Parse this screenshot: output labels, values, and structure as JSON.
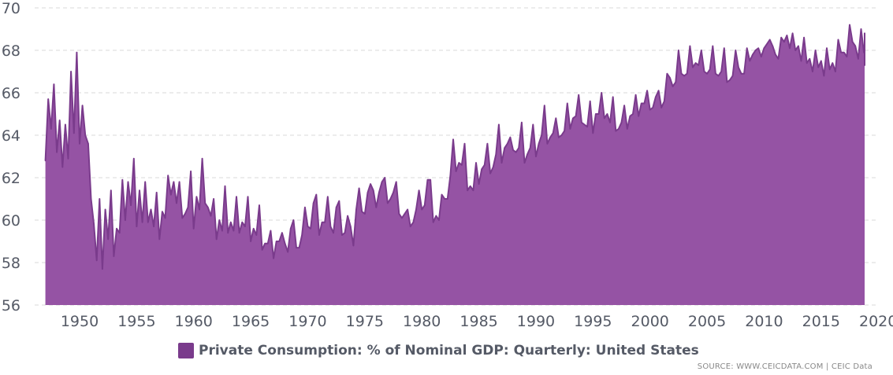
{
  "chart_data": {
    "type": "area",
    "title": "",
    "xlabel": "",
    "ylabel": "",
    "x_range": [
      1947,
      2019.5
    ],
    "ylim": [
      56,
      70
    ],
    "y_ticks": [
      "56",
      "58",
      "60",
      "62",
      "64",
      "66",
      "68",
      "70"
    ],
    "x_ticks": [
      "1950",
      "1955",
      "1960",
      "1965",
      "1970",
      "1975",
      "1980",
      "1985",
      "1990",
      "1995",
      "2000",
      "2005",
      "2010",
      "2015",
      "2020"
    ],
    "grid": "horizontal dashed",
    "legend_position": "bottom",
    "series": [
      {
        "name": "Private Consumption: % of Nominal GDP: Quarterly: United States",
        "color": "#9553a4",
        "line_color": "#7a3b8c",
        "points": [
          [
            1947.0,
            62.8
          ],
          [
            1947.25,
            65.7
          ],
          [
            1947.5,
            64.3
          ],
          [
            1947.75,
            66.4
          ],
          [
            1948.0,
            63.2
          ],
          [
            1948.25,
            64.7
          ],
          [
            1948.5,
            62.5
          ],
          [
            1948.75,
            64.5
          ],
          [
            1949.0,
            62.9
          ],
          [
            1949.25,
            67.0
          ],
          [
            1949.5,
            64.1
          ],
          [
            1949.75,
            67.9
          ],
          [
            1950.0,
            63.6
          ],
          [
            1950.25,
            65.4
          ],
          [
            1950.5,
            64.0
          ],
          [
            1950.75,
            63.6
          ],
          [
            1951.0,
            61.0
          ],
          [
            1951.25,
            59.8
          ],
          [
            1951.5,
            58.1
          ],
          [
            1951.75,
            61.0
          ],
          [
            1952.0,
            57.7
          ],
          [
            1952.25,
            60.5
          ],
          [
            1952.5,
            59.1
          ],
          [
            1952.75,
            61.4
          ],
          [
            1953.0,
            58.3
          ],
          [
            1953.25,
            59.6
          ],
          [
            1953.5,
            59.4
          ],
          [
            1953.75,
            61.9
          ],
          [
            1954.0,
            60.0
          ],
          [
            1954.25,
            61.8
          ],
          [
            1954.5,
            60.7
          ],
          [
            1954.75,
            62.9
          ],
          [
            1955.0,
            59.7
          ],
          [
            1955.25,
            61.4
          ],
          [
            1955.5,
            59.9
          ],
          [
            1955.75,
            61.8
          ],
          [
            1956.0,
            59.9
          ],
          [
            1956.25,
            60.5
          ],
          [
            1956.5,
            59.7
          ],
          [
            1956.75,
            61.3
          ],
          [
            1957.0,
            59.1
          ],
          [
            1957.25,
            60.4
          ],
          [
            1957.5,
            60.1
          ],
          [
            1957.75,
            62.1
          ],
          [
            1958.0,
            61.2
          ],
          [
            1958.25,
            61.8
          ],
          [
            1958.5,
            60.8
          ],
          [
            1958.75,
            61.8
          ],
          [
            1959.0,
            60.1
          ],
          [
            1959.25,
            60.3
          ],
          [
            1959.5,
            60.6
          ],
          [
            1959.75,
            62.3
          ],
          [
            1960.0,
            59.6
          ],
          [
            1960.25,
            61.1
          ],
          [
            1960.5,
            60.5
          ],
          [
            1960.75,
            62.9
          ],
          [
            1961.0,
            60.8
          ],
          [
            1961.25,
            60.6
          ],
          [
            1961.5,
            60.2
          ],
          [
            1961.75,
            61.0
          ],
          [
            1962.0,
            59.1
          ],
          [
            1962.25,
            60.0
          ],
          [
            1962.5,
            59.5
          ],
          [
            1962.75,
            61.6
          ],
          [
            1963.0,
            59.4
          ],
          [
            1963.25,
            59.9
          ],
          [
            1963.5,
            59.5
          ],
          [
            1963.75,
            61.1
          ],
          [
            1964.0,
            59.4
          ],
          [
            1964.25,
            59.9
          ],
          [
            1964.5,
            59.7
          ],
          [
            1964.75,
            61.1
          ],
          [
            1965.0,
            59.0
          ],
          [
            1965.25,
            59.6
          ],
          [
            1965.5,
            59.3
          ],
          [
            1965.75,
            60.7
          ],
          [
            1966.0,
            58.6
          ],
          [
            1966.25,
            58.9
          ],
          [
            1966.5,
            58.9
          ],
          [
            1966.75,
            59.5
          ],
          [
            1967.0,
            58.2
          ],
          [
            1967.25,
            59.0
          ],
          [
            1967.5,
            59.0
          ],
          [
            1967.75,
            59.4
          ],
          [
            1968.0,
            58.9
          ],
          [
            1968.25,
            58.5
          ],
          [
            1968.5,
            59.6
          ],
          [
            1968.75,
            60.0
          ],
          [
            1969.0,
            58.7
          ],
          [
            1969.25,
            58.7
          ],
          [
            1969.5,
            59.3
          ],
          [
            1969.75,
            60.6
          ],
          [
            1970.0,
            59.7
          ],
          [
            1970.25,
            59.6
          ],
          [
            1970.5,
            60.8
          ],
          [
            1970.75,
            61.2
          ],
          [
            1971.0,
            59.3
          ],
          [
            1971.25,
            59.9
          ],
          [
            1971.5,
            59.9
          ],
          [
            1971.75,
            61.1
          ],
          [
            1972.0,
            59.7
          ],
          [
            1972.25,
            59.4
          ],
          [
            1972.5,
            60.6
          ],
          [
            1972.75,
            60.9
          ],
          [
            1973.0,
            59.3
          ],
          [
            1973.25,
            59.4
          ],
          [
            1973.5,
            60.2
          ],
          [
            1973.75,
            59.7
          ],
          [
            1974.0,
            58.8
          ],
          [
            1974.25,
            60.5
          ],
          [
            1974.5,
            61.5
          ],
          [
            1974.75,
            60.4
          ],
          [
            1975.0,
            60.3
          ],
          [
            1975.25,
            61.3
          ],
          [
            1975.5,
            61.7
          ],
          [
            1975.75,
            61.4
          ],
          [
            1976.0,
            60.6
          ],
          [
            1976.25,
            61.3
          ],
          [
            1976.5,
            61.8
          ],
          [
            1976.75,
            62.0
          ],
          [
            1977.0,
            60.8
          ],
          [
            1977.25,
            61.0
          ],
          [
            1977.5,
            61.3
          ],
          [
            1977.75,
            61.8
          ],
          [
            1978.0,
            60.3
          ],
          [
            1978.25,
            60.1
          ],
          [
            1978.5,
            60.3
          ],
          [
            1978.75,
            60.5
          ],
          [
            1979.0,
            59.7
          ],
          [
            1979.25,
            59.9
          ],
          [
            1979.5,
            60.5
          ],
          [
            1979.75,
            61.4
          ],
          [
            1980.0,
            60.5
          ],
          [
            1980.25,
            60.7
          ],
          [
            1980.5,
            61.9
          ],
          [
            1980.75,
            61.9
          ],
          [
            1981.0,
            59.9
          ],
          [
            1981.25,
            60.2
          ],
          [
            1981.5,
            60.0
          ],
          [
            1981.75,
            61.2
          ],
          [
            1982.0,
            61.0
          ],
          [
            1982.25,
            61.0
          ],
          [
            1982.5,
            62.1
          ],
          [
            1982.75,
            63.8
          ],
          [
            1983.0,
            62.3
          ],
          [
            1983.25,
            62.7
          ],
          [
            1983.5,
            62.6
          ],
          [
            1983.75,
            63.6
          ],
          [
            1984.0,
            61.4
          ],
          [
            1984.25,
            61.6
          ],
          [
            1984.5,
            61.4
          ],
          [
            1984.75,
            62.7
          ],
          [
            1985.0,
            61.7
          ],
          [
            1985.25,
            62.4
          ],
          [
            1985.5,
            62.6
          ],
          [
            1985.75,
            63.6
          ],
          [
            1986.0,
            62.2
          ],
          [
            1986.25,
            62.5
          ],
          [
            1986.5,
            63.1
          ],
          [
            1986.75,
            64.5
          ],
          [
            1987.0,
            62.7
          ],
          [
            1987.25,
            63.4
          ],
          [
            1987.5,
            63.6
          ],
          [
            1987.75,
            63.9
          ],
          [
            1988.0,
            63.3
          ],
          [
            1988.25,
            63.2
          ],
          [
            1988.5,
            63.4
          ],
          [
            1988.75,
            64.6
          ],
          [
            1989.0,
            62.7
          ],
          [
            1989.25,
            63.1
          ],
          [
            1989.5,
            63.4
          ],
          [
            1989.75,
            64.5
          ],
          [
            1990.0,
            63.0
          ],
          [
            1990.25,
            63.6
          ],
          [
            1990.5,
            64.0
          ],
          [
            1990.75,
            65.4
          ],
          [
            1991.0,
            63.6
          ],
          [
            1991.25,
            63.9
          ],
          [
            1991.5,
            64.1
          ],
          [
            1991.75,
            64.8
          ],
          [
            1992.0,
            63.9
          ],
          [
            1992.25,
            64.0
          ],
          [
            1992.5,
            64.2
          ],
          [
            1992.75,
            65.5
          ],
          [
            1993.0,
            64.3
          ],
          [
            1993.25,
            64.8
          ],
          [
            1993.5,
            64.9
          ],
          [
            1993.75,
            65.9
          ],
          [
            1994.0,
            64.6
          ],
          [
            1994.25,
            64.5
          ],
          [
            1994.5,
            64.4
          ],
          [
            1994.75,
            65.6
          ],
          [
            1995.0,
            64.1
          ],
          [
            1995.25,
            65.0
          ],
          [
            1995.5,
            65.0
          ],
          [
            1995.75,
            66.0
          ],
          [
            1996.0,
            64.8
          ],
          [
            1996.25,
            65.0
          ],
          [
            1996.5,
            64.6
          ],
          [
            1996.75,
            65.8
          ],
          [
            1997.0,
            64.2
          ],
          [
            1997.25,
            64.3
          ],
          [
            1997.5,
            64.6
          ],
          [
            1997.75,
            65.4
          ],
          [
            1998.0,
            64.3
          ],
          [
            1998.25,
            64.9
          ],
          [
            1998.5,
            65.0
          ],
          [
            1998.75,
            65.9
          ],
          [
            1999.0,
            64.9
          ],
          [
            1999.25,
            65.5
          ],
          [
            1999.5,
            65.5
          ],
          [
            1999.75,
            66.1
          ],
          [
            2000.0,
            65.2
          ],
          [
            2000.25,
            65.3
          ],
          [
            2000.5,
            65.8
          ],
          [
            2000.75,
            66.1
          ],
          [
            2001.0,
            65.3
          ],
          [
            2001.25,
            65.6
          ],
          [
            2001.5,
            66.9
          ],
          [
            2001.75,
            66.7
          ],
          [
            2002.0,
            66.3
          ],
          [
            2002.25,
            66.5
          ],
          [
            2002.5,
            68.0
          ],
          [
            2002.75,
            66.9
          ],
          [
            2003.0,
            66.8
          ],
          [
            2003.25,
            66.9
          ],
          [
            2003.5,
            68.2
          ],
          [
            2003.75,
            67.2
          ],
          [
            2004.0,
            67.4
          ],
          [
            2004.25,
            67.3
          ],
          [
            2004.5,
            68.0
          ],
          [
            2004.75,
            67.0
          ],
          [
            2005.0,
            66.9
          ],
          [
            2005.25,
            67.1
          ],
          [
            2005.5,
            68.2
          ],
          [
            2005.75,
            66.9
          ],
          [
            2006.0,
            66.8
          ],
          [
            2006.25,
            67.0
          ],
          [
            2006.5,
            68.1
          ],
          [
            2006.75,
            66.5
          ],
          [
            2007.0,
            66.6
          ],
          [
            2007.25,
            66.8
          ],
          [
            2007.5,
            68.0
          ],
          [
            2007.75,
            67.2
          ],
          [
            2008.0,
            66.9
          ],
          [
            2008.25,
            66.9
          ],
          [
            2008.5,
            68.1
          ],
          [
            2008.75,
            67.5
          ],
          [
            2009.0,
            67.8
          ],
          [
            2009.25,
            68.0
          ],
          [
            2009.5,
            68.1
          ],
          [
            2009.75,
            67.7
          ],
          [
            2010.0,
            68.1
          ],
          [
            2010.25,
            68.3
          ],
          [
            2010.5,
            68.5
          ],
          [
            2010.75,
            68.2
          ],
          [
            2011.0,
            67.8
          ],
          [
            2011.25,
            67.6
          ],
          [
            2011.5,
            68.6
          ],
          [
            2011.75,
            68.4
          ],
          [
            2012.0,
            68.7
          ],
          [
            2012.25,
            68.1
          ],
          [
            2012.5,
            68.8
          ],
          [
            2012.75,
            68.0
          ],
          [
            2013.0,
            68.2
          ],
          [
            2013.25,
            67.5
          ],
          [
            2013.5,
            68.6
          ],
          [
            2013.75,
            67.4
          ],
          [
            2014.0,
            67.6
          ],
          [
            2014.25,
            67.0
          ],
          [
            2014.5,
            68.0
          ],
          [
            2014.75,
            67.2
          ],
          [
            2015.0,
            67.5
          ],
          [
            2015.25,
            66.8
          ],
          [
            2015.5,
            68.1
          ],
          [
            2015.75,
            67.1
          ],
          [
            2016.0,
            67.4
          ],
          [
            2016.25,
            67.0
          ],
          [
            2016.5,
            68.5
          ],
          [
            2016.75,
            67.9
          ],
          [
            2017.0,
            67.9
          ],
          [
            2017.25,
            67.7
          ],
          [
            2017.5,
            69.2
          ],
          [
            2017.75,
            68.4
          ],
          [
            2018.0,
            68.2
          ],
          [
            2018.25,
            67.6
          ],
          [
            2018.5,
            69.0
          ],
          [
            2018.75,
            67.9
          ],
          [
            2019.0,
            68.0
          ],
          [
            2019.25,
            67.5
          ],
          [
            2019.5,
            68.8
          ],
          [
            2019.75,
            67.3
          ],
          [
            2020.0,
            68.0
          ]
        ]
      }
    ]
  },
  "legend": {
    "label": "Private Consumption: % of Nominal GDP: Quarterly: United States",
    "color": "#7a3b8c"
  },
  "source": "SOURCE: WWW.CEICDATA.COM | CEIC Data"
}
